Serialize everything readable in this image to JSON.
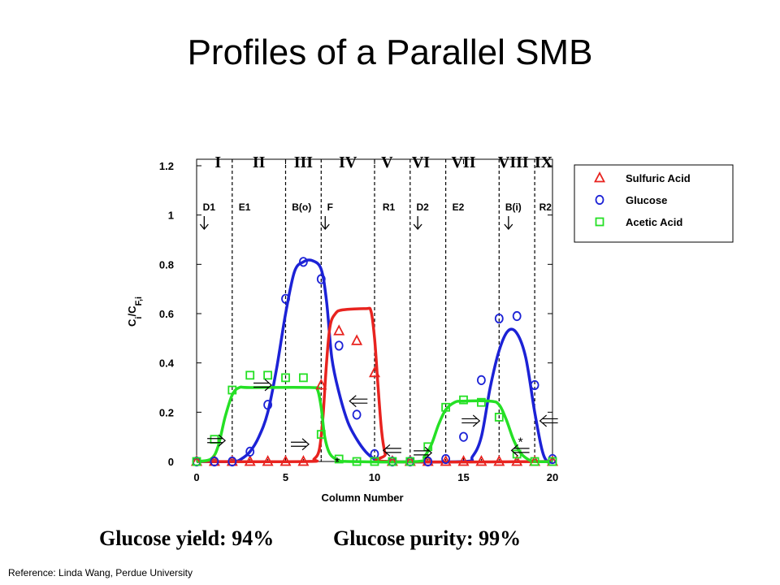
{
  "slide": {
    "title": "Profiles of a Parallel SMB",
    "yield_text": "Glucose yield: 94%",
    "purity_text": "Glucose purity: 99%",
    "reference": "Reference: Linda Wang, Perdue University"
  },
  "chart_data": {
    "type": "line",
    "title": "",
    "xlabel": "Column Number",
    "ylabel_parts": [
      "C",
      "i",
      "/C",
      "F,i"
    ],
    "xlim": [
      0,
      20
    ],
    "ylim": [
      0,
      1.2
    ],
    "x_ticks": [
      0,
      5,
      10,
      15,
      20
    ],
    "y_ticks": [
      0,
      0.2,
      0.4,
      0.6,
      0.8,
      1.0,
      1.2
    ],
    "x_tick_labels": [
      "0",
      "5",
      "10",
      "15",
      "20"
    ],
    "y_tick_labels": [
      "0",
      "0.2",
      "0.4",
      "0.6",
      "0.8",
      "1",
      "1.2"
    ],
    "grid": false,
    "legend_position": "right",
    "zone_boundaries": [
      2,
      5,
      7,
      10,
      12,
      14,
      17,
      19
    ],
    "zones": [
      {
        "label": "I",
        "x": 1.2
      },
      {
        "label": "II",
        "x": 3.5
      },
      {
        "label": "III",
        "x": 6.0
      },
      {
        "label": "IV",
        "x": 8.5
      },
      {
        "label": "V",
        "x": 10.7
      },
      {
        "label": "VI",
        "x": 12.6
      },
      {
        "label": "VII",
        "x": 15.0
      },
      {
        "label": "VIII",
        "x": 17.8
      },
      {
        "label": "IX",
        "x": 19.5
      }
    ],
    "ports": [
      {
        "label": "D1",
        "x": 0.7,
        "arrow": true
      },
      {
        "label": "E1",
        "x": 2.7,
        "arrow": false
      },
      {
        "label": "B(o)",
        "x": 5.9,
        "arrow": false
      },
      {
        "label": "F",
        "x": 7.5,
        "arrow": true
      },
      {
        "label": "R1",
        "x": 10.8,
        "arrow": false
      },
      {
        "label": "D2",
        "x": 12.7,
        "arrow": true
      },
      {
        "label": "E2",
        "x": 14.7,
        "arrow": false
      },
      {
        "label": "B(i)",
        "x": 17.8,
        "arrow": true
      },
      {
        "label": "R2",
        "x": 19.6,
        "arrow": false
      }
    ],
    "flow_arrows": [
      {
        "x": 1.1,
        "y": 0.085,
        "direction": "right"
      },
      {
        "x": 3.7,
        "y": 0.31,
        "direction": "right"
      },
      {
        "x": 5.8,
        "y": 0.07,
        "direction": "right"
      },
      {
        "x": 9.1,
        "y": 0.245,
        "direction": "left"
      },
      {
        "x": 11.0,
        "y": 0.045,
        "direction": "left"
      },
      {
        "x": 12.7,
        "y": 0.035,
        "direction": "right"
      },
      {
        "x": 15.4,
        "y": 0.165,
        "direction": "right"
      },
      {
        "x": 18.2,
        "y": 0.045,
        "direction": "left"
      },
      {
        "x": 19.8,
        "y": 0.165,
        "direction": "left"
      }
    ],
    "star_marks": [
      {
        "x": 7.9,
        "y": 0.0
      },
      {
        "x": 18.2,
        "y": 0.08
      }
    ],
    "series": [
      {
        "name": "Sulfuric Acid",
        "color": "#e8231f",
        "marker": "triangle",
        "line": [
          [
            0,
            0
          ],
          [
            6.2,
            0
          ],
          [
            6.6,
            0.01
          ],
          [
            6.9,
            0.05
          ],
          [
            7.1,
            0.18
          ],
          [
            7.3,
            0.4
          ],
          [
            7.5,
            0.55
          ],
          [
            7.8,
            0.6
          ],
          [
            8.2,
            0.615
          ],
          [
            9.5,
            0.62
          ],
          [
            9.8,
            0.61
          ],
          [
            10.0,
            0.5
          ],
          [
            10.2,
            0.3
          ],
          [
            10.4,
            0.12
          ],
          [
            10.6,
            0.03
          ],
          [
            10.8,
            0
          ],
          [
            20,
            0
          ]
        ],
        "points": [
          [
            0,
            0
          ],
          [
            1,
            0
          ],
          [
            2,
            0
          ],
          [
            3,
            0
          ],
          [
            4,
            0
          ],
          [
            5,
            0
          ],
          [
            6,
            0
          ],
          [
            7,
            0.31
          ],
          [
            8,
            0.53
          ],
          [
            9,
            0.49
          ],
          [
            10,
            0.36
          ],
          [
            11,
            0
          ],
          [
            12,
            0
          ],
          [
            13,
            0
          ],
          [
            14,
            0
          ],
          [
            15,
            0
          ],
          [
            16,
            0
          ],
          [
            17,
            0
          ],
          [
            18,
            0
          ],
          [
            19,
            0
          ],
          [
            20,
            0
          ]
        ]
      },
      {
        "name": "Glucose",
        "color": "#1c22d6",
        "marker": "circle",
        "line": [
          [
            0,
            0
          ],
          [
            2,
            0
          ],
          [
            2.5,
            0.01
          ],
          [
            3,
            0.04
          ],
          [
            3.5,
            0.1
          ],
          [
            4,
            0.2
          ],
          [
            4.5,
            0.38
          ],
          [
            5,
            0.6
          ],
          [
            5.5,
            0.77
          ],
          [
            6,
            0.81
          ],
          [
            6.5,
            0.815
          ],
          [
            7,
            0.78
          ],
          [
            7.3,
            0.65
          ],
          [
            7.6,
            0.42
          ],
          [
            8,
            0.28
          ],
          [
            8.5,
            0.16
          ],
          [
            9,
            0.09
          ],
          [
            9.5,
            0.04
          ],
          [
            10,
            0.01
          ],
          [
            10.5,
            0
          ],
          [
            15,
            0
          ],
          [
            15.5,
            0.02
          ],
          [
            16,
            0.1
          ],
          [
            16.5,
            0.3
          ],
          [
            17,
            0.45
          ],
          [
            17.5,
            0.53
          ],
          [
            18,
            0.52
          ],
          [
            18.5,
            0.42
          ],
          [
            19,
            0.2
          ],
          [
            19.4,
            0.05
          ],
          [
            19.7,
            0
          ],
          [
            20,
            0
          ]
        ],
        "points": [
          [
            0,
            0
          ],
          [
            1,
            0
          ],
          [
            2,
            0
          ],
          [
            3,
            0.04
          ],
          [
            4,
            0.23
          ],
          [
            5,
            0.66
          ],
          [
            6,
            0.81
          ],
          [
            7,
            0.74
          ],
          [
            8,
            0.47
          ],
          [
            9,
            0.19
          ],
          [
            10,
            0.03
          ],
          [
            11,
            0
          ],
          [
            12,
            0
          ],
          [
            13,
            0
          ],
          [
            14,
            0.01
          ],
          [
            15,
            0.1
          ],
          [
            16,
            0.33
          ],
          [
            17,
            0.58
          ],
          [
            18,
            0.59
          ],
          [
            19,
            0.31
          ],
          [
            20,
            0.01
          ]
        ]
      },
      {
        "name": "Acetic Acid",
        "color": "#25e025",
        "marker": "square",
        "line": [
          [
            0,
            0
          ],
          [
            0.8,
            0.01
          ],
          [
            1.2,
            0.06
          ],
          [
            1.6,
            0.18
          ],
          [
            2,
            0.27
          ],
          [
            2.4,
            0.3
          ],
          [
            3,
            0.3
          ],
          [
            6.5,
            0.3
          ],
          [
            6.8,
            0.29
          ],
          [
            7,
            0.22
          ],
          [
            7.2,
            0.1
          ],
          [
            7.5,
            0.03
          ],
          [
            8,
            0.005
          ],
          [
            8.5,
            0
          ],
          [
            12.4,
            0
          ],
          [
            12.8,
            0.02
          ],
          [
            13.2,
            0.07
          ],
          [
            13.6,
            0.15
          ],
          [
            14,
            0.21
          ],
          [
            14.5,
            0.24
          ],
          [
            15,
            0.245
          ],
          [
            16.5,
            0.245
          ],
          [
            17,
            0.23
          ],
          [
            17.4,
            0.17
          ],
          [
            17.8,
            0.09
          ],
          [
            18.2,
            0.035
          ],
          [
            18.6,
            0.01
          ],
          [
            19,
            0
          ],
          [
            20,
            0
          ]
        ],
        "points": [
          [
            0,
            0
          ],
          [
            1,
            0.09
          ],
          [
            2,
            0.29
          ],
          [
            3,
            0.35
          ],
          [
            4,
            0.35
          ],
          [
            5,
            0.34
          ],
          [
            6,
            0.34
          ],
          [
            7,
            0.11
          ],
          [
            8,
            0.01
          ],
          [
            9,
            0
          ],
          [
            10,
            0
          ],
          [
            11,
            0
          ],
          [
            12,
            0
          ],
          [
            13,
            0.06
          ],
          [
            14,
            0.22
          ],
          [
            15,
            0.25
          ],
          [
            16,
            0.24
          ],
          [
            17,
            0.18
          ],
          [
            18,
            0.03
          ],
          [
            19,
            0
          ],
          [
            20,
            0
          ]
        ]
      }
    ]
  }
}
